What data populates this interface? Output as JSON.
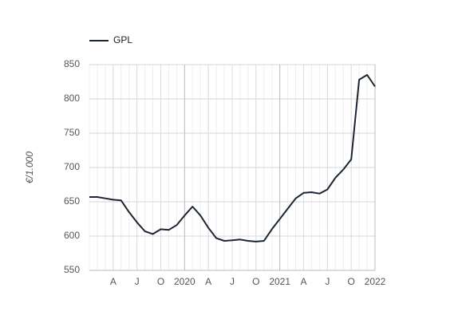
{
  "chart_data": {
    "type": "line",
    "y_label": "€/1.000",
    "x": [
      "2019-01",
      "2019-02",
      "2019-03",
      "2019-04",
      "2019-05",
      "2019-06",
      "2019-07",
      "2019-08",
      "2019-09",
      "2019-10",
      "2019-11",
      "2019-12",
      "2020-01",
      "2020-02",
      "2020-03",
      "2020-04",
      "2020-05",
      "2020-06",
      "2020-07",
      "2020-08",
      "2020-09",
      "2020-10",
      "2020-11",
      "2020-12",
      "2021-01",
      "2021-02",
      "2021-03",
      "2021-04",
      "2021-05",
      "2021-06",
      "2021-07",
      "2021-08",
      "2021-09",
      "2021-10",
      "2021-11",
      "2021-12",
      "2022-01"
    ],
    "series": [
      {
        "name": "GPL",
        "color": "#1c2533",
        "values": [
          657,
          657,
          655,
          653,
          652,
          635,
          620,
          607,
          603,
          610,
          609,
          616,
          630,
          643,
          630,
          612,
          597,
          593,
          594,
          595,
          593,
          592,
          593,
          610,
          625,
          640,
          655,
          663,
          664,
          662,
          668,
          685,
          697,
          712,
          828,
          835,
          818
        ]
      }
    ],
    "xlim": [
      "2019-01",
      "2022-01"
    ],
    "xticks": [
      {
        "value": "2019-04",
        "label": "A"
      },
      {
        "value": "2019-07",
        "label": "J"
      },
      {
        "value": "2019-10",
        "label": "O"
      },
      {
        "value": "2020-01",
        "label": "2020"
      },
      {
        "value": "2020-04",
        "label": "A"
      },
      {
        "value": "2020-07",
        "label": "J"
      },
      {
        "value": "2020-10",
        "label": "O"
      },
      {
        "value": "2021-01",
        "label": "2021"
      },
      {
        "value": "2021-04",
        "label": "A"
      },
      {
        "value": "2021-07",
        "label": "J"
      },
      {
        "value": "2021-10",
        "label": "O"
      },
      {
        "value": "2022-01",
        "label": "2022"
      }
    ],
    "ylim": [
      550,
      850
    ],
    "yticks": [
      550,
      600,
      650,
      700,
      750,
      800,
      850
    ],
    "grid": true,
    "legend": "top-left"
  }
}
